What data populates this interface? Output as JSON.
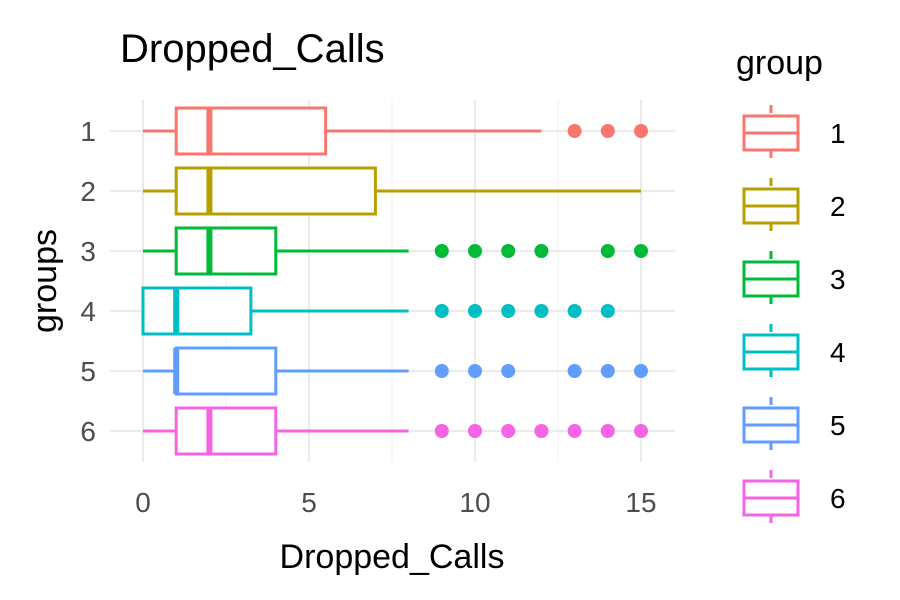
{
  "chart_data": {
    "type": "boxplot",
    "orientation": "horizontal",
    "title": "Dropped_Calls",
    "xlabel": "Dropped_Calls",
    "ylabel": "groups",
    "xlim": [
      -0.75,
      15.75
    ],
    "xticks": [
      0,
      5,
      10,
      15
    ],
    "categories": [
      "1",
      "2",
      "3",
      "4",
      "5",
      "6"
    ],
    "grid": true,
    "legend": {
      "title": "group",
      "placement": "right"
    },
    "series": [
      {
        "name": "1",
        "color": "#F8766D",
        "whisker_low": 0,
        "q1": 1,
        "median": 2,
        "q3": 5.5,
        "whisker_high": 12,
        "outliers": [
          13,
          14,
          15
        ]
      },
      {
        "name": "2",
        "color": "#B79F00",
        "whisker_low": 0,
        "q1": 1,
        "median": 2,
        "q3": 7,
        "whisker_high": 15,
        "outliers": []
      },
      {
        "name": "3",
        "color": "#00BA38",
        "whisker_low": 0,
        "q1": 1,
        "median": 2,
        "q3": 4,
        "whisker_high": 8,
        "outliers": [
          9,
          10,
          11,
          12,
          14,
          15
        ]
      },
      {
        "name": "4",
        "color": "#00BFC4",
        "whisker_low": 0,
        "q1": 0,
        "median": 1,
        "q3": 3.25,
        "whisker_high": 8,
        "outliers": [
          9,
          10,
          11,
          12,
          13,
          14
        ]
      },
      {
        "name": "5",
        "color": "#619CFF",
        "whisker_low": 0,
        "q1": 1,
        "median": 1,
        "q3": 4,
        "whisker_high": 8,
        "outliers": [
          9,
          10,
          11,
          13,
          14,
          15
        ]
      },
      {
        "name": "6",
        "color": "#F564E3",
        "whisker_low": 0,
        "q1": 1,
        "median": 2,
        "q3": 4,
        "whisker_high": 8,
        "outliers": [
          9,
          10,
          11,
          12,
          13,
          14,
          15
        ]
      }
    ]
  }
}
